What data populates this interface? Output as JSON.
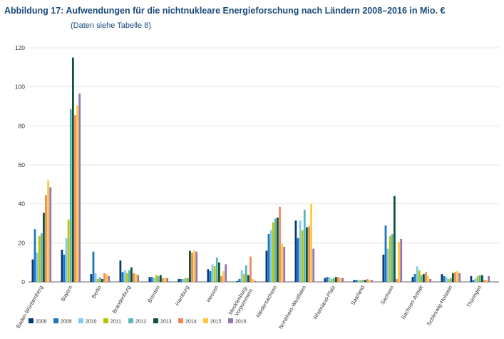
{
  "chart_data": {
    "type": "bar",
    "title": "Abbildung 17: Aufwendungen für die nichtnukleare Energieforschung nach Ländern 2008–2016 in Mio. €",
    "subtitle": "(Daten siehe Tabelle 8)",
    "xlabel": "",
    "ylabel": "",
    "ylim": [
      0,
      120
    ],
    "yticks": [
      0,
      20,
      40,
      60,
      80,
      100,
      120
    ],
    "grid": true,
    "legend_position": "bottom",
    "categories": [
      "Baden-Württemberg",
      "Bayern",
      "Berlin",
      "Brandenburg",
      "Bremen",
      "Hamburg",
      "Hessen",
      "Mecklenburg-Vorpommern",
      "Niedersachsen",
      "Nordrhein-Westfalen",
      "Rheinland-Pfalz",
      "Saarland",
      "Sachsen",
      "Sachsen-Anhalt",
      "Schleswig-Holstein",
      "Thüringen"
    ],
    "category_display": [
      "Baden-Württemberg",
      "Bayern",
      "Berlin",
      "Brandenburg",
      "Bremen",
      "Hamburg",
      "Hessen",
      "Mecklenburg-\nVorpommern",
      "Niedersachsen",
      "Nordrhein-Westfalen",
      "Rheinland-Pfalz",
      "Saarland",
      "Sachsen",
      "Sachsen-Anhalt",
      "Schleswig-Holstein",
      "Thüringen"
    ],
    "series": [
      {
        "name": "2008",
        "color": "#0a3a73",
        "values": [
          11.5,
          16.5,
          4,
          11,
          2.5,
          1.5,
          6.5,
          0.5,
          16,
          31.5,
          2,
          1,
          14,
          2.5,
          4,
          3
        ]
      },
      {
        "name": "2009",
        "color": "#1b76c0",
        "values": [
          27,
          14,
          15.5,
          5,
          2.5,
          1.5,
          5.5,
          1.5,
          24.5,
          22.5,
          2.5,
          1,
          29,
          4,
          3,
          1
        ]
      },
      {
        "name": "2010",
        "color": "#7fc8ee",
        "values": [
          15,
          22.5,
          4.5,
          6,
          2,
          1.5,
          9,
          6,
          26.5,
          31.5,
          2.5,
          1,
          17,
          8,
          2.5,
          2
        ]
      },
      {
        "name": "2011",
        "color": "#b8c400",
        "values": [
          23.5,
          32,
          1.5,
          4.5,
          3.5,
          2,
          8,
          4,
          30.5,
          26.5,
          1.5,
          1,
          23.5,
          6,
          1.5,
          3
        ]
      },
      {
        "name": "2012",
        "color": "#5eb3b3",
        "values": [
          25,
          88.5,
          2.5,
          6,
          3,
          2,
          12.5,
          8.5,
          32.5,
          37,
          2,
          1,
          24.5,
          3.5,
          2,
          3.5
        ]
      },
      {
        "name": "2013",
        "color": "#0e5438",
        "values": [
          35.5,
          115,
          1.5,
          7.5,
          3.5,
          16,
          10,
          3.5,
          33,
          28,
          2.5,
          1,
          44,
          4,
          4.5,
          3.5
        ]
      },
      {
        "name": "2014",
        "color": "#ef8a5e",
        "values": [
          44.5,
          85.5,
          4.5,
          4.5,
          2,
          15,
          3,
          13,
          38.5,
          28.5,
          2.5,
          1.5,
          1.5,
          5,
          5,
          1
        ]
      },
      {
        "name": "2015",
        "color": "#ffc93a",
        "values": [
          52,
          90.5,
          4,
          4,
          2,
          16,
          5.5,
          1.5,
          19.5,
          40,
          2,
          1,
          20.5,
          3,
          5.5,
          1
        ]
      },
      {
        "name": "2016",
        "color": "#9475b0",
        "values": [
          48.5,
          96.5,
          3,
          3.5,
          2,
          15.5,
          9,
          0.5,
          18,
          17,
          2,
          1,
          22,
          1.5,
          4.5,
          3
        ]
      }
    ]
  }
}
